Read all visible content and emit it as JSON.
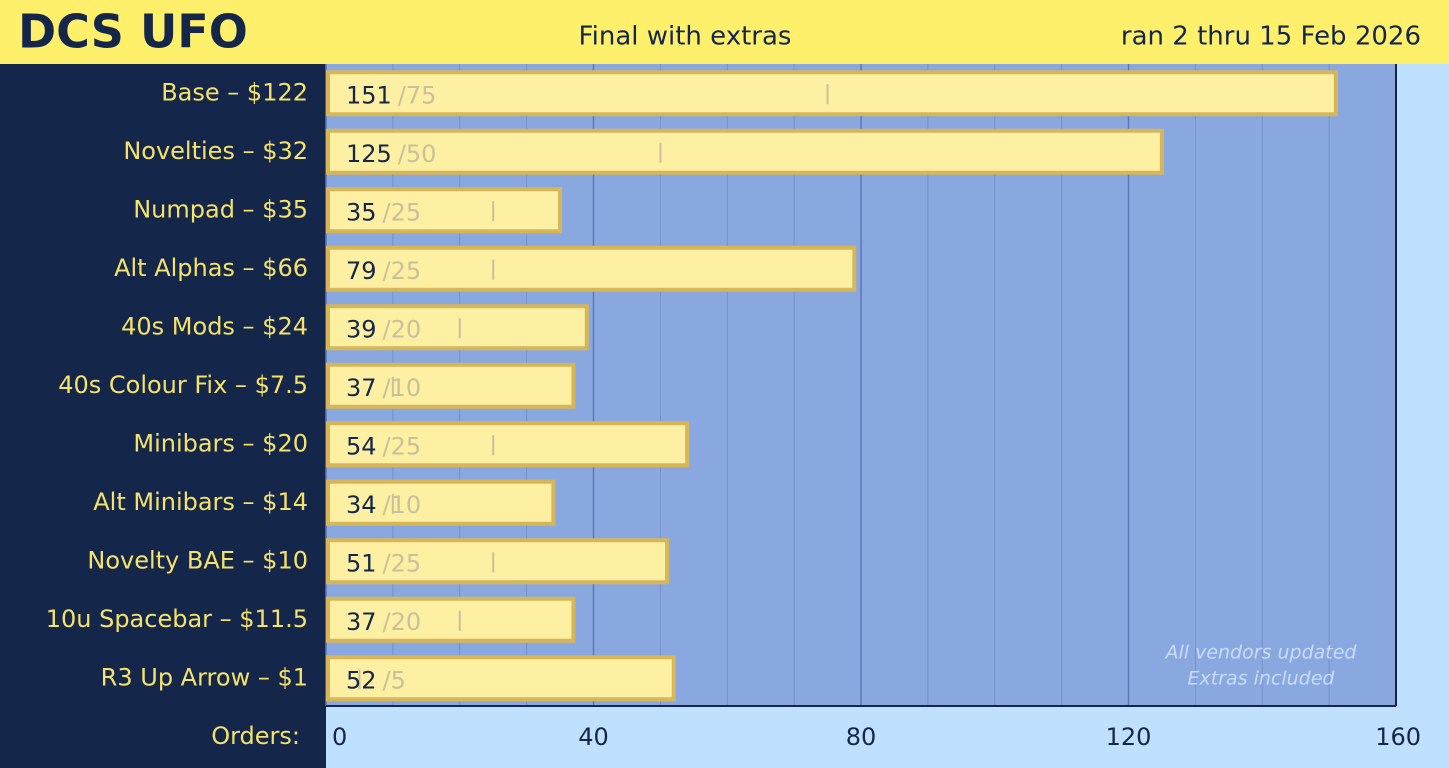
{
  "header": {
    "title": "DCS UFO",
    "subtitle": "Final with extras",
    "date": "ran 2 thru 15 Feb 2026"
  },
  "chart_data": {
    "type": "bar",
    "orientation": "horizontal",
    "categories": [
      "Base – $122",
      "Novelties – $32",
      "Numpad – $35",
      "Alt Alphas – $66",
      "40s Mods – $24",
      "40s Colour Fix – $7.5",
      "Minibars – $20",
      "Alt Minibars – $14",
      "Novelty BAE – $10",
      "10u Spacebar – $11.5",
      "R3 Up Arrow – $1"
    ],
    "values": [
      151,
      125,
      35,
      79,
      39,
      37,
      54,
      34,
      51,
      37,
      52
    ],
    "targets": [
      75,
      50,
      25,
      25,
      20,
      10,
      25,
      10,
      25,
      20,
      5
    ],
    "target_labels": [
      "/75",
      "/50",
      "/25",
      "/25",
      "/20",
      "/10",
      "/25",
      "/10",
      "/25",
      "/20",
      "/5"
    ],
    "color": "#fdf0a2",
    "x_label": "Orders:",
    "xlim": [
      0,
      160
    ],
    "xticks": [
      0,
      40,
      80,
      120,
      160
    ],
    "minor_xticks": [
      10,
      20,
      30,
      50,
      60,
      70,
      90,
      100,
      110,
      130,
      140,
      150
    ],
    "grid": true,
    "annotations": [
      "All vendors updated",
      "Extras included"
    ]
  }
}
